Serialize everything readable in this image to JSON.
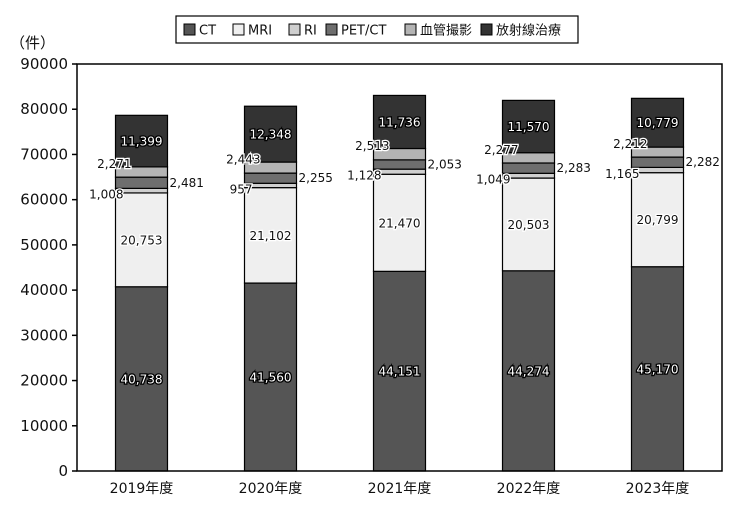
{
  "chart_data": {
    "type": "bar",
    "stacked": true,
    "unit_label": "（件）",
    "categories": [
      "2019年度",
      "2020年度",
      "2021年度",
      "2022年度",
      "2023年度"
    ],
    "ylim": [
      0,
      90000
    ],
    "yticks": [
      0,
      10000,
      20000,
      30000,
      40000,
      50000,
      60000,
      70000,
      80000,
      90000
    ],
    "legend_position": "top",
    "grid": false,
    "series": [
      {
        "name": "CT",
        "color": "#555555",
        "values": [
          40738,
          41560,
          44151,
          44274,
          45170
        ],
        "labels": [
          "40,738",
          "41,560",
          "44,151",
          "44,274",
          "45,170"
        ]
      },
      {
        "name": "MRI",
        "color": "#efefef",
        "values": [
          20753,
          21102,
          21470,
          20503,
          20799
        ],
        "labels": [
          "20,753",
          "21,102",
          "21,470",
          "20,503",
          "20,799"
        ]
      },
      {
        "name": "RI",
        "color": "#cfcfcf",
        "values": [
          1008,
          957,
          1128,
          1049,
          1165
        ],
        "labels": [
          "1,008",
          "957",
          "1,128",
          "1,049",
          "1,165"
        ]
      },
      {
        "name": "PET/CT",
        "color": "#6e6e6e",
        "values": [
          2481,
          2255,
          2053,
          2283,
          2282
        ],
        "labels": [
          "2,481",
          "2,255",
          "2,053",
          "2,283",
          "2,282"
        ]
      },
      {
        "name": "血管撮影",
        "color": "#b4b4b4",
        "values": [
          2271,
          2443,
          2513,
          2277,
          2212
        ],
        "labels": [
          "2,271",
          "2,443",
          "2,513",
          "2,277",
          "2,212"
        ]
      },
      {
        "name": "放射線治療",
        "color": "#333333",
        "values": [
          11399,
          12348,
          11736,
          11570,
          10779
        ],
        "labels": [
          "11,399",
          "12,348",
          "11,736",
          "11,570",
          "10,779"
        ]
      }
    ]
  }
}
